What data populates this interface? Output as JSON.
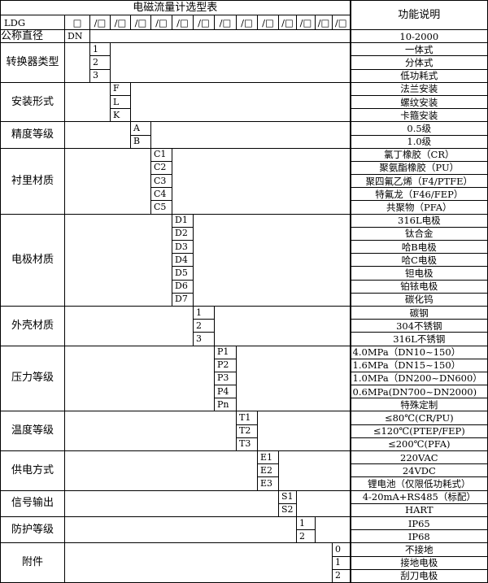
{
  "title": "电磁流量计选型表",
  "function_header": "功能说明",
  "model_row": {
    "prefix": "LDG",
    "first_box": "□",
    "boxes": [
      "/□",
      "/□",
      "/□",
      "/□",
      "/□",
      "/□",
      "/□",
      "/□",
      "/□",
      "/□",
      "/□",
      "/□",
      "/□"
    ]
  },
  "nominal": {
    "label": "公称直径",
    "code": "DN",
    "desc": "10-2000"
  },
  "groups": [
    {
      "label": "转换器类型",
      "col": 2,
      "items": [
        {
          "code": "1",
          "desc": "一体式"
        },
        {
          "code": "2",
          "desc": "分体式"
        },
        {
          "code": "3",
          "desc": "低功耗式"
        }
      ]
    },
    {
      "label": "安装形式",
      "col": 3,
      "items": [
        {
          "code": "F",
          "desc": "法兰安装"
        },
        {
          "code": "L",
          "desc": "螺纹安装"
        },
        {
          "code": "K",
          "desc": "卡箍安装"
        }
      ]
    },
    {
      "label": "精度等级",
      "col": 4,
      "items": [
        {
          "code": "A",
          "desc": "0.5级"
        },
        {
          "code": "B",
          "desc": "1.0级"
        }
      ]
    },
    {
      "label": "衬里材质",
      "col": 5,
      "items": [
        {
          "code": "C1",
          "desc": "氯丁橡胶（CR）"
        },
        {
          "code": "C2",
          "desc": "聚氨酯橡胶（PU）"
        },
        {
          "code": "C3",
          "desc": "聚四氟乙烯（F4/PTFE）"
        },
        {
          "code": "C4",
          "desc": "特氟龙（F46/FEP）"
        },
        {
          "code": "C5",
          "desc": "共聚物（PFA）"
        }
      ]
    },
    {
      "label": "电极材质",
      "col": 6,
      "items": [
        {
          "code": "D1",
          "desc": "316L电极"
        },
        {
          "code": "D2",
          "desc": "钛合金"
        },
        {
          "code": "D3",
          "desc": "哈B电极"
        },
        {
          "code": "D4",
          "desc": "哈C电极"
        },
        {
          "code": "D5",
          "desc": "钽电极"
        },
        {
          "code": "D6",
          "desc": "铂铱电极"
        },
        {
          "code": "D7",
          "desc": "碳化钨"
        }
      ]
    },
    {
      "label": "外壳材质",
      "col": 7,
      "items": [
        {
          "code": "1",
          "desc": "碳钢"
        },
        {
          "code": "2",
          "desc": "304不锈钢"
        },
        {
          "code": "3",
          "desc": "316L不锈钢"
        }
      ]
    },
    {
      "label": "压力等级",
      "col": 8,
      "items": [
        {
          "code": "P1",
          "desc": "4.0MPa（DN10~150）",
          "left": true
        },
        {
          "code": "P2",
          "desc": "1.6MPa（DN15~150）",
          "left": true
        },
        {
          "code": "P3",
          "desc": "1.0MPa（DN200~DN600）",
          "left": true
        },
        {
          "code": "P4",
          "desc": "0.6MPa(DN700~DN2000)",
          "left": true
        },
        {
          "code": "Pn",
          "desc": "特殊定制"
        }
      ]
    },
    {
      "label": "温度等级",
      "col": 9,
      "items": [
        {
          "code": "T1",
          "desc": "≤80℃(CR/PU)"
        },
        {
          "code": "T2",
          "desc": "≤120℃(PTEP/FEP)"
        },
        {
          "code": "T3",
          "desc": "≤200℃(PFA)"
        }
      ]
    },
    {
      "label": "供电方式",
      "col": 10,
      "items": [
        {
          "code": "E1",
          "desc": "220VAC"
        },
        {
          "code": "E2",
          "desc": "24VDC"
        },
        {
          "code": "E3",
          "desc": "锂电池（仅限低功耗式）"
        }
      ]
    },
    {
      "label": "信号输出",
      "col": 11,
      "items": [
        {
          "code": "S1",
          "desc": "4-20mA+RS485（标配）"
        },
        {
          "code": "S2",
          "desc": "HART"
        }
      ]
    },
    {
      "label": "防护等级",
      "col": 12,
      "items": [
        {
          "code": "1",
          "desc": "IP65"
        },
        {
          "code": "2",
          "desc": "IP68"
        }
      ]
    },
    {
      "label": "附件",
      "col": 14,
      "items": [
        {
          "code": "0",
          "desc": "不接地"
        },
        {
          "code": "1",
          "desc": "接地电极"
        },
        {
          "code": "2",
          "desc": "刮刀电极"
        }
      ]
    }
  ]
}
